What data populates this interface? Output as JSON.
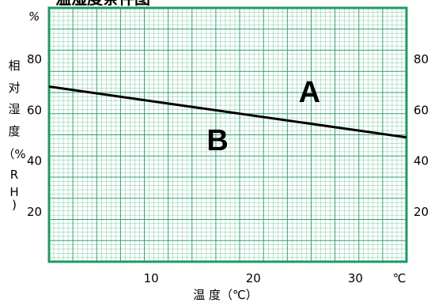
{
  "chart_data": {
    "type": "line",
    "title": "温湿度条件图",
    "xlabel": "温  度（℃）",
    "ylabel": [
      "相",
      "对",
      "湿",
      "度",
      "（%",
      "R",
      "H",
      ")"
    ],
    "x_unit": "℃",
    "y_unit": "%",
    "xlim": [
      0,
      35
    ],
    "ylim": [
      0,
      100
    ],
    "x_ticks": [
      10,
      20,
      30
    ],
    "y_ticks": [
      20,
      40,
      60,
      80
    ],
    "grid": true,
    "grid_color": "#1e9a62",
    "line_color": "#000000",
    "series": [
      {
        "x": [
          0,
          35
        ],
        "y": [
          69,
          49
        ]
      }
    ],
    "regions": [
      {
        "label": "A",
        "x": 25.5,
        "y": 63
      },
      {
        "label": "B",
        "x": 16.5,
        "y": 44
      }
    ]
  }
}
